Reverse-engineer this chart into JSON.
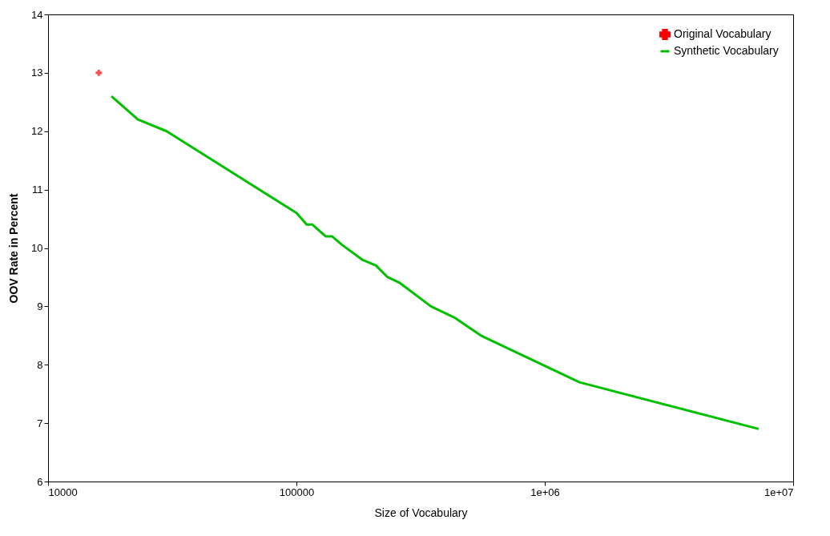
{
  "chart_data": {
    "type": "line",
    "xlabel": "Size of Vocabulary",
    "ylabel": "OOV Rate in Percent",
    "log": "x",
    "grid": false,
    "legend": "top right",
    "xlim": [
      10000,
      10000000
    ],
    "xticks": [
      10000,
      100000,
      {
        "value": 1000000,
        "label": "1e+06"
      },
      {
        "value": 10000000,
        "label": "1e+07"
      }
    ],
    "ylim": [
      6,
      14
    ],
    "yticks": [
      6,
      7,
      8,
      9,
      10,
      11,
      12,
      13,
      14
    ],
    "series": [
      {
        "name": "Original Vocabulary",
        "type": "scatter",
        "marker": "cross",
        "color": "#ff0000",
        "x": [
          16000
        ],
        "values": [
          13
        ]
      },
      {
        "name": "Synthetic Vocabulary",
        "color": "#00c000",
        "x": [
          18000,
          23000,
          30000,
          100000,
          110000,
          116000,
          131000,
          139000,
          153000,
          184000,
          209000,
          233000,
          261000,
          348000,
          436000,
          553000,
          1380000,
          7260000
        ],
        "values": [
          12.6,
          12.2,
          12.0,
          10.6,
          10.4,
          10.4,
          10.2,
          10.2,
          10.05,
          9.8,
          9.7,
          9.5,
          9.4,
          9.0,
          8.8,
          8.5,
          7.7,
          6.9
        ]
      }
    ]
  }
}
